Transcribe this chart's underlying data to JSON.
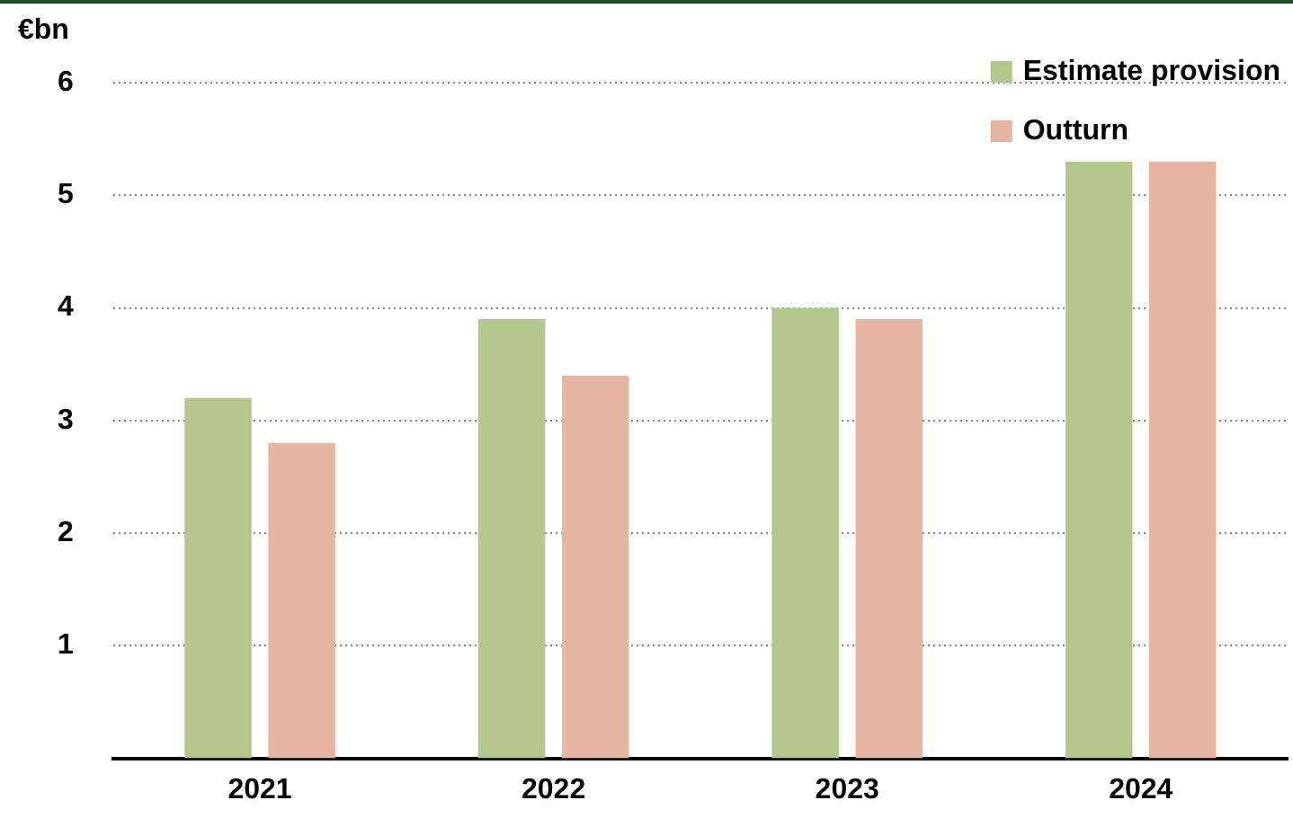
{
  "chart_data": {
    "type": "bar",
    "ylabel": "€bn",
    "categories": [
      "2021",
      "2022",
      "2023",
      "2024"
    ],
    "series": [
      {
        "name": "Estimate provision",
        "color": "#b5c68d",
        "values": [
          3.2,
          3.9,
          4.0,
          5.3
        ]
      },
      {
        "name": "Outturn",
        "color": "#e6b5a2",
        "values": [
          2.8,
          3.4,
          3.9,
          5.3
        ]
      }
    ],
    "ylim": [
      0,
      6
    ],
    "yticks": [
      1,
      2,
      3,
      4,
      5,
      6
    ],
    "grid": "y",
    "legend": "top right"
  }
}
